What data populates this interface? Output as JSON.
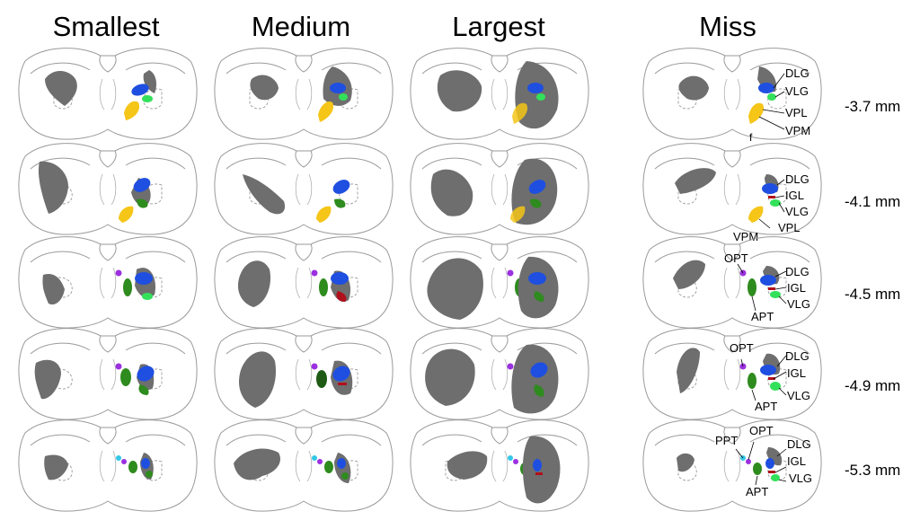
{
  "columns": [
    "Smallest",
    "Medium",
    "Largest",
    "Miss"
  ],
  "levels": [
    "-3.7 mm",
    "-4.1 mm",
    "-4.5 mm",
    "-4.9 mm",
    "-5.3 mm"
  ],
  "annotations": {
    "row1": {
      "dlg": "DLG",
      "vlg": "VLG",
      "vpl": "VPL",
      "vpm": "VPM",
      "f": "f"
    },
    "row2": {
      "dlg": "DLG",
      "igl": "IGL",
      "vlg": "VLG",
      "vpl": "VPL",
      "vpm": "VPM"
    },
    "row3": {
      "opt": "OPT",
      "dlg": "DLG",
      "igl": "IGL",
      "vlg": "VLG",
      "apt": "APT"
    },
    "row4": {
      "opt": "OPT",
      "dlg": "DLG",
      "igl": "IGL",
      "vlg": "VLG",
      "apt": "APT"
    },
    "row5": {
      "ppt": "PPT",
      "opt": "OPT",
      "dlg": "DLG",
      "igl": "IGL",
      "vlg": "VLG",
      "apt": "APT"
    }
  },
  "colors": {
    "lesion": "#6e6e6e",
    "dlg": "#1f4fe0",
    "vlg": "#33e05a",
    "igl": "#b0101c",
    "vpl": "#f5c518",
    "vpm": "#f5a800",
    "apt": "#2e8b1e",
    "opt": "#9b30e0",
    "ppt": "#33c8e8",
    "outline": "#9a9a9a"
  }
}
